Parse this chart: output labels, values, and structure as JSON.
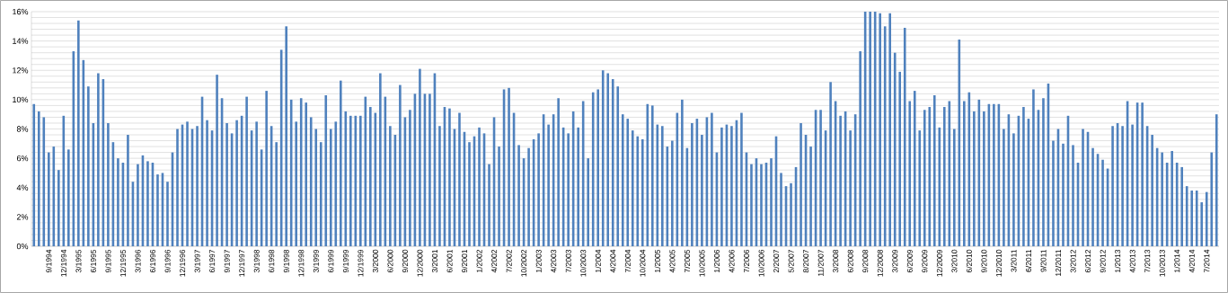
{
  "chart_data": {
    "type": "bar",
    "categories": [
      null,
      null,
      null,
      "9/1994",
      null,
      null,
      "12/1994",
      null,
      null,
      "3/1995",
      null,
      null,
      "6/1995",
      null,
      null,
      "9/1995",
      null,
      null,
      "12/1995",
      null,
      null,
      "3/1996",
      null,
      null,
      "6/1996",
      null,
      null,
      "9/1996",
      null,
      null,
      "12/1996",
      null,
      null,
      "3/1997",
      null,
      null,
      "6/1997",
      null,
      null,
      "9/1997",
      null,
      null,
      "12/1997",
      null,
      null,
      "3/1998",
      null,
      null,
      "6/1998",
      null,
      null,
      "9/1998",
      null,
      null,
      "12/1998",
      null,
      null,
      "3/1999",
      null,
      null,
      "6/1999",
      null,
      null,
      "9/1999",
      null,
      null,
      "12/1999",
      null,
      null,
      "3/2000",
      null,
      null,
      "6/2000",
      null,
      null,
      "9/2000",
      null,
      null,
      "12/2000",
      null,
      null,
      "3/2001",
      null,
      null,
      "6/2001",
      null,
      null,
      "9/2001",
      null,
      null,
      "1/2002",
      null,
      null,
      "4/2002",
      null,
      null,
      "7/2002",
      null,
      null,
      "10/2002",
      null,
      null,
      "1/2003",
      null,
      null,
      "4/2003",
      null,
      null,
      "7/2003",
      null,
      null,
      "10/2003",
      null,
      null,
      "1/2004",
      null,
      null,
      "4/2004",
      null,
      null,
      "7/2004",
      null,
      null,
      "10/2004",
      null,
      null,
      "1/2005",
      null,
      null,
      "4/2005",
      null,
      null,
      "7/2005",
      null,
      null,
      "10/2005",
      null,
      null,
      "1/2006",
      null,
      null,
      "4/2006",
      null,
      null,
      "7/2006",
      null,
      null,
      "10/2006",
      null,
      null,
      "2/2007",
      null,
      null,
      "5/2007",
      null,
      null,
      "8/2007",
      null,
      null,
      "11/2007",
      null,
      null,
      "3/2008",
      null,
      null,
      "6/2008",
      null,
      null,
      "9/2008",
      null,
      null,
      "12/2008",
      null,
      null,
      "3/2009",
      null,
      null,
      "6/2009",
      null,
      null,
      "9/2009",
      null,
      null,
      "12/2009",
      null,
      null,
      "3/2010",
      null,
      null,
      "6/2010",
      null,
      null,
      "9/2010",
      null,
      null,
      "12/2010",
      null,
      null,
      "3/2011",
      null,
      null,
      "6/2011",
      null,
      null,
      "9/2011",
      null,
      null,
      "12/2011",
      null,
      null,
      "3/2012",
      null,
      null,
      "6/2012",
      null,
      null,
      "9/2012",
      null,
      null,
      "1/2013",
      null,
      null,
      "4/2013",
      null,
      null,
      "7/2013",
      null,
      null,
      "10/2013",
      null,
      null,
      "1/2014",
      null,
      null,
      "4/2014",
      null,
      null,
      "7/2014",
      null,
      null
    ],
    "values": [
      9.7,
      9.2,
      8.8,
      6.4,
      6.8,
      5.2,
      8.9,
      6.6,
      13.3,
      15.4,
      12.7,
      10.9,
      8.4,
      11.8,
      11.4,
      8.4,
      7.1,
      6.0,
      5.7,
      7.6,
      4.4,
      5.6,
      6.2,
      5.8,
      5.7,
      4.9,
      5.0,
      4.4,
      6.4,
      8.0,
      8.3,
      8.5,
      8.0,
      8.2,
      10.2,
      8.6,
      7.9,
      11.7,
      10.1,
      8.4,
      7.7,
      8.6,
      8.9,
      10.2,
      7.9,
      8.5,
      6.6,
      10.6,
      8.2,
      7.1,
      13.4,
      15.0,
      10.0,
      8.5,
      10.1,
      9.8,
      8.8,
      8.0,
      7.1,
      10.3,
      8.0,
      8.5,
      11.3,
      9.2,
      8.9,
      8.9,
      8.9,
      10.2,
      9.5,
      9.1,
      11.8,
      10.2,
      8.2,
      7.6,
      11.0,
      8.8,
      9.3,
      10.4,
      12.1,
      10.4,
      10.4,
      11.8,
      8.2,
      9.5,
      9.4,
      8.0,
      9.1,
      7.8,
      7.1,
      7.5,
      8.1,
      7.7,
      5.6,
      8.8,
      6.8,
      10.7,
      10.8,
      9.1,
      6.9,
      6.0,
      6.7,
      7.3,
      7.7,
      9.0,
      8.3,
      9.0,
      10.1,
      8.1,
      7.7,
      9.2,
      8.1,
      9.9,
      6.0,
      10.5,
      10.7,
      12.0,
      11.8,
      11.4,
      10.9,
      9.0,
      8.7,
      7.9,
      7.5,
      7.3,
      9.7,
      9.6,
      8.3,
      8.2,
      6.8,
      7.2,
      9.1,
      10.0,
      6.7,
      8.4,
      8.7,
      7.6,
      8.8,
      9.1,
      6.4,
      8.1,
      8.3,
      8.2,
      8.6,
      9.1,
      6.4,
      5.6,
      6.0,
      5.6,
      5.7,
      6.0,
      7.5,
      5.0,
      4.1,
      4.3,
      5.4,
      8.4,
      7.6,
      6.8,
      9.3,
      9.3,
      7.9,
      11.2,
      9.9,
      8.9,
      9.2,
      7.9,
      9.0,
      13.3,
      16,
      16,
      16,
      15.9,
      15.0,
      15.9,
      13.2,
      11.9,
      14.9,
      9.9,
      10.6,
      7.9,
      9.3,
      9.5,
      10.3,
      8.1,
      9.5,
      9.9,
      8.0,
      14.1,
      9.9,
      10.5,
      9.2,
      10.0,
      9.2,
      9.7,
      9.7,
      9.7,
      8.0,
      9.0,
      7.7,
      8.9,
      9.5,
      8.7,
      10.7,
      9.3,
      10.1,
      11.1,
      7.2,
      8.0,
      7.0,
      8.9,
      6.9,
      5.7,
      8.0,
      7.8,
      6.7,
      6.3,
      5.9,
      5.3,
      8.2,
      8.4,
      8.2,
      9.9,
      8.3,
      9.8,
      9.8,
      8.2,
      7.6,
      6.7,
      6.4,
      5.7,
      6.5,
      5.7,
      5.4,
      4.1,
      3.8,
      3.8,
      3.0,
      3.7,
      6.4,
      9.0
    ],
    "color": "#4f81bd",
    "ylim": [
      0,
      16
    ],
    "yticks": [
      {
        "value": 0,
        "label": "0%"
      },
      {
        "value": 0.4,
        "label": null
      },
      {
        "value": 0.8,
        "label": null
      },
      {
        "value": 1.2,
        "label": null
      },
      {
        "value": 1.6,
        "label": null
      },
      {
        "value": 2,
        "label": "2%"
      },
      {
        "value": 2.4,
        "label": null
      },
      {
        "value": 2.8,
        "label": null
      },
      {
        "value": 3.2,
        "label": null
      },
      {
        "value": 3.6,
        "label": null
      },
      {
        "value": 4,
        "label": "4%"
      },
      {
        "value": 4.4,
        "label": null
      },
      {
        "value": 4.8,
        "label": null
      },
      {
        "value": 5.2,
        "label": null
      },
      {
        "value": 5.6,
        "label": null
      },
      {
        "value": 6,
        "label": "6%"
      },
      {
        "value": 6.4,
        "label": null
      },
      {
        "value": 6.8,
        "label": null
      },
      {
        "value": 7.2,
        "label": null
      },
      {
        "value": 7.6,
        "label": null
      },
      {
        "value": 8,
        "label": "8%"
      },
      {
        "value": 8.4,
        "label": null
      },
      {
        "value": 8.8,
        "label": null
      },
      {
        "value": 9.2,
        "label": null
      },
      {
        "value": 9.6,
        "label": null
      },
      {
        "value": 10,
        "label": "10%"
      },
      {
        "value": 10.4,
        "label": null
      },
      {
        "value": 10.8,
        "label": null
      },
      {
        "value": 11.2,
        "label": null
      },
      {
        "value": 11.6,
        "label": null
      },
      {
        "value": 12,
        "label": "12%"
      },
      {
        "value": 12.4,
        "label": null
      },
      {
        "value": 12.8,
        "label": null
      },
      {
        "value": 13.2,
        "label": null
      },
      {
        "value": 13.6,
        "label": null
      },
      {
        "value": 14,
        "label": "14%"
      },
      {
        "value": 14.4,
        "label": null
      },
      {
        "value": 14.8,
        "label": null
      },
      {
        "value": 15.2,
        "label": null
      },
      {
        "value": 15.6,
        "label": null
      },
      {
        "value": 16,
        "label": "16%"
      }
    ],
    "grid": "y"
  }
}
